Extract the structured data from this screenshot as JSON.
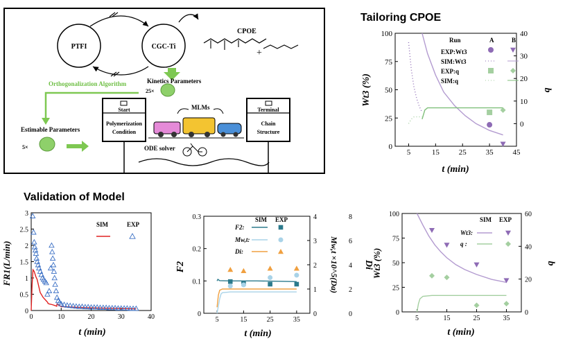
{
  "schematic": {
    "node_ptfi": "PTFI",
    "node_cgcti": "CGC-Ti",
    "cpoe_label": "CPOE",
    "kinetics_label": "Kinetics Parameters",
    "kinetics_count": "25×",
    "ortho_label": "Orthogonalization Algorithm",
    "estimable_label": "Estimable Parameters",
    "estimable_count": "5×",
    "mlms_label": "MLMs",
    "ode_label": "ODE solver",
    "start_title": "Start",
    "start_body_1": "Polymerization",
    "start_body_2": "Condition",
    "terminal_title": "Terminal",
    "terminal_body_1": "Chain",
    "terminal_body_2": "Structure"
  },
  "titles": {
    "tailoring": "Tailoring CPOE",
    "validation": "Validation of Model"
  },
  "colors": {
    "purple": "#8e6bb5",
    "purple_light": "#b39bd0",
    "green": "#a4cfa0",
    "green_dark": "#7fbf7a",
    "teal": "#2b7a8c",
    "lightblue": "#a9d3e8",
    "orange": "#f0a040",
    "red": "#e02020",
    "tri_blue": "#3a6fc4",
    "arrow_green": "#7ec852"
  },
  "chart_data": [
    {
      "id": "tailoring",
      "type": "scatter",
      "title": "Tailoring CPOE",
      "xlabel": "t (min)",
      "ylabel_left": "Wt3 (%)",
      "ylabel_right": "b",
      "xlim": [
        0,
        45
      ],
      "ylim_left": [
        0,
        100
      ],
      "ylim_right": [
        -10,
        40
      ],
      "xticks": [
        5,
        15,
        25,
        35,
        45
      ],
      "yticks_left": [
        0,
        25,
        50,
        75,
        100
      ],
      "yticks_right": [
        0,
        10,
        20,
        30,
        40
      ],
      "legend": {
        "header": "Run",
        "col_a": "A",
        "col_b": "B",
        "rows": [
          "EXP:Wt3",
          "SIM:Wt3",
          "EXP:q",
          "SIM:q"
        ]
      },
      "series": [
        {
          "name": "SIM:Wt3 A",
          "axis": "left",
          "x": [
            5,
            6,
            7,
            8,
            9,
            10
          ],
          "y": [
            92,
            68,
            52,
            42,
            35,
            30
          ]
        },
        {
          "name": "SIM:Wt3 B",
          "axis": "left",
          "x": [
            10,
            12,
            15,
            18,
            22,
            26,
            30,
            35,
            40
          ],
          "y": [
            100,
            82,
            63,
            48,
            36,
            27,
            20,
            14,
            10
          ]
        },
        {
          "name": "EXP:Wt3 A",
          "axis": "left",
          "x": [
            35
          ],
          "y": [
            19
          ]
        },
        {
          "name": "EXP:Wt3 B",
          "axis": "left",
          "x": [
            40
          ],
          "y": [
            2
          ]
        },
        {
          "name": "SIM:q A",
          "axis": "right",
          "x": [
            5,
            6,
            7,
            8,
            10
          ],
          "y": [
            0,
            2,
            3,
            3,
            3
          ]
        },
        {
          "name": "SIM:q B",
          "axis": "right",
          "x": [
            10,
            11,
            12,
            15,
            25,
            40
          ],
          "y": [
            2,
            6,
            7,
            7,
            7,
            7
          ]
        },
        {
          "name": "EXP:q A",
          "axis": "right",
          "x": [
            35
          ],
          "y": [
            5
          ]
        },
        {
          "name": "EXP:q B",
          "axis": "right",
          "x": [
            40
          ],
          "y": [
            6
          ]
        }
      ]
    },
    {
      "id": "fr",
      "type": "line",
      "xlabel": "t (min)",
      "ylabel": "FR1(L/min)",
      "xlim": [
        0,
        40
      ],
      "ylim": [
        0,
        3
      ],
      "xticks": [
        0,
        10,
        20,
        30,
        40
      ],
      "yticks": [
        0,
        0.5,
        1,
        1.5,
        2,
        2.5,
        3
      ],
      "legend": [
        "SIM",
        "EXP"
      ],
      "series": [
        {
          "name": "SIM",
          "x": [
            0,
            0.3,
            0.6,
            1,
            1.5,
            2,
            3,
            4,
            5,
            5.5,
            5.6,
            6,
            7,
            8,
            8.5,
            8.6,
            10,
            15,
            20,
            25,
            30,
            35
          ],
          "y": [
            0,
            0.8,
            1.25,
            1.2,
            1.05,
            0.95,
            0.55,
            0.4,
            0.3,
            0.25,
            0.22,
            0.2,
            0.18,
            0.15,
            0.13,
            0.2,
            0.12,
            0.1,
            0.08,
            0.07,
            0.06,
            0.05
          ]
        },
        {
          "name": "EXP",
          "x": [
            0.5,
            0.8,
            1,
            1.2,
            1.4,
            1.6,
            1.8,
            2,
            2.3,
            2.6,
            3,
            3.4,
            3.8,
            4.2,
            4.6,
            5,
            5.4,
            6,
            6.5,
            6.8,
            7,
            7.2,
            7.4,
            7.6,
            7.8,
            8,
            8.3,
            8.6,
            9,
            9.5,
            10,
            11,
            12,
            13,
            14,
            15,
            16,
            17,
            18,
            19,
            20,
            21,
            22,
            23,
            24,
            25,
            26,
            27,
            28,
            29,
            30,
            31,
            32,
            33,
            34,
            35
          ],
          "y": [
            2.9,
            2.4,
            2.1,
            1.95,
            1.85,
            1.75,
            1.6,
            1.5,
            1.4,
            1.3,
            1.2,
            1.1,
            1.0,
            0.95,
            0.9,
            0.85,
            0.5,
            0.6,
            1.3,
            2.0,
            1.8,
            1.6,
            1.4,
            1.2,
            1.0,
            0.8,
            0.6,
            0.4,
            0.3,
            0.25,
            0.2,
            0.18,
            0.16,
            0.15,
            0.14,
            0.13,
            0.12,
            0.12,
            0.11,
            0.11,
            0.1,
            0.1,
            0.1,
            0.09,
            0.09,
            0.09,
            0.08,
            0.08,
            0.08,
            0.07,
            0.07,
            0.07,
            0.07,
            0.06,
            0.06,
            0.06
          ]
        }
      ]
    },
    {
      "id": "f2",
      "type": "line",
      "xlabel": "t (min)",
      "ylabel_left": "F2",
      "ylabel_mid": "Mw,t ×10^5(Da)",
      "ylabel_right": "Di",
      "xlim": [
        0,
        40
      ],
      "ylim_left": [
        0,
        0.3
      ],
      "ylim_mid": [
        0,
        4
      ],
      "ylim_right": [
        0,
        8
      ],
      "xticks": [
        5,
        15,
        25,
        35
      ],
      "yticks_left": [
        0,
        0.1,
        0.2,
        0.3
      ],
      "yticks_mid": [
        0,
        1,
        2,
        3,
        4
      ],
      "yticks_right": [
        0,
        2,
        4,
        6,
        8
      ],
      "legend": {
        "sim": "SIM",
        "exp": "EXP",
        "rows": [
          "F2:",
          "Mw,t:",
          "Di:"
        ]
      },
      "series": [
        {
          "name": "F2 SIM",
          "axis": "left",
          "x": [
            5,
            5.3,
            6,
            10,
            20,
            35
          ],
          "y": [
            0.1,
            0.105,
            0.101,
            0.1,
            0.1,
            0.098
          ]
        },
        {
          "name": "Mw SIM",
          "axis": "mid",
          "x": [
            5,
            5.5,
            6,
            6.5,
            7,
            10,
            20,
            35
          ],
          "y": [
            0,
            0.3,
            0.6,
            0.8,
            0.85,
            0.88,
            0.88,
            0.88
          ]
        },
        {
          "name": "Di SIM",
          "axis": "right",
          "x": [
            5,
            5.5,
            6,
            7,
            10,
            20,
            35
          ],
          "y": [
            0.5,
            1.5,
            1.9,
            2.0,
            2.0,
            2.0,
            2.0
          ]
        },
        {
          "name": "F2 EXP",
          "axis": "left",
          "x": [
            10,
            15,
            25,
            35
          ],
          "y": [
            0.098,
            0.092,
            0.09,
            0.09
          ]
        },
        {
          "name": "Mw EXP",
          "axis": "mid",
          "x": [
            10,
            15,
            25,
            35
          ],
          "y": [
            1.12,
            1.17,
            1.47,
            1.57
          ]
        },
        {
          "name": "Di EXP",
          "axis": "right",
          "x": [
            10,
            15,
            25,
            35
          ],
          "y": [
            3.6,
            3.5,
            3.7,
            3.7
          ]
        }
      ]
    },
    {
      "id": "wt3",
      "type": "line",
      "xlabel": "t (min)",
      "ylabel_left": "Wt3 (%)",
      "ylabel_right": "b",
      "xlim": [
        0,
        40
      ],
      "ylim_left": [
        0,
        100
      ],
      "ylim_right": [
        0,
        60
      ],
      "xticks": [
        5,
        15,
        25,
        35
      ],
      "yticks_left": [
        0,
        25,
        50,
        75,
        100
      ],
      "yticks_right": [
        0,
        20,
        40,
        60
      ],
      "legend": {
        "sim": "SIM",
        "exp": "EXP",
        "rows": [
          "Wt3:",
          "q :"
        ]
      },
      "series": [
        {
          "name": "Wt3 SIM",
          "axis": "left",
          "x": [
            5,
            7,
            9,
            11,
            13,
            15,
            18,
            21,
            25,
            30,
            35
          ],
          "y": [
            100,
            88,
            77,
            68,
            61,
            55,
            48,
            43,
            38,
            33,
            30
          ]
        },
        {
          "name": "q SIM",
          "axis": "right",
          "x": [
            5,
            5.5,
            6,
            7,
            10,
            20,
            35
          ],
          "y": [
            0,
            5,
            8,
            9.5,
            10,
            10,
            10
          ]
        },
        {
          "name": "Wt3 EXP",
          "axis": "left",
          "x": [
            10,
            15,
            25,
            35
          ],
          "y": [
            83,
            68,
            48,
            32
          ]
        },
        {
          "name": "q EXP",
          "axis": "right",
          "x": [
            10,
            15,
            25,
            35
          ],
          "y": [
            22,
            21,
            4,
            5
          ]
        }
      ]
    }
  ]
}
